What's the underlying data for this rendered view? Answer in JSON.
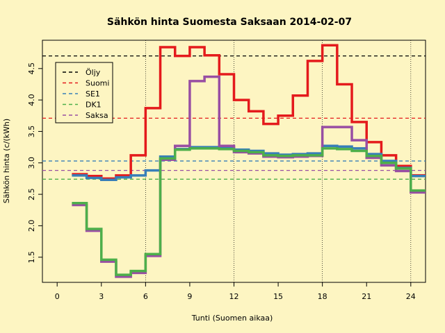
{
  "chart_data": {
    "type": "line",
    "title": "Sähkön hinta Suomesta Saksaan 2014-02-07",
    "xlabel": "Tunti (Suomen aikaa)",
    "ylabel": "Sähkön hinta (c/(kWh)",
    "xlim": [
      -1,
      25
    ],
    "ylim": [
      1.1,
      4.95
    ],
    "x_ticks": [
      0,
      3,
      6,
      9,
      12,
      15,
      18,
      21,
      24
    ],
    "y_ticks": [
      1.5,
      2.0,
      2.5,
      3.0,
      3.5,
      4.0,
      4.5
    ],
    "y_tick_labels": [
      "1.5",
      "2.0",
      "2.5",
      "3.0",
      "3.5",
      "4.0",
      "4.5"
    ],
    "vertical_gridlines": [
      6,
      12,
      18,
      24
    ],
    "legend_position": "top-left",
    "series": [
      {
        "name": "Suomi",
        "color": "#e41a1c",
        "values": [
          2.82,
          2.79,
          2.75,
          2.8,
          3.12,
          3.87,
          4.84,
          4.7,
          4.84,
          4.71,
          4.41,
          4.0,
          3.82,
          3.62,
          3.75,
          4.07,
          4.62,
          4.87,
          4.25,
          3.65,
          3.33,
          3.12,
          2.95,
          2.8
        ]
      },
      {
        "name": "SE1",
        "color": "#377eb8",
        "values": [
          2.8,
          2.76,
          2.73,
          2.77,
          2.8,
          2.88,
          3.1,
          3.22,
          3.25,
          3.25,
          3.24,
          3.21,
          3.19,
          3.15,
          3.13,
          3.14,
          3.15,
          3.27,
          3.26,
          3.23,
          3.14,
          3.03,
          2.92,
          2.79
        ]
      },
      {
        "name": "Saksa",
        "color": "#984ea3",
        "values": [
          2.33,
          1.92,
          1.43,
          1.19,
          1.25,
          1.52,
          3.05,
          3.27,
          4.3,
          4.37,
          3.27,
          3.17,
          3.15,
          3.1,
          3.09,
          3.1,
          3.11,
          3.57,
          3.57,
          3.36,
          3.08,
          2.96,
          2.87,
          2.53
        ]
      },
      {
        "name": "DK1",
        "color": "#4daf4a",
        "values": [
          2.36,
          1.95,
          1.46,
          1.22,
          1.28,
          1.55,
          3.07,
          3.21,
          3.23,
          3.23,
          3.22,
          3.19,
          3.17,
          3.12,
          3.11,
          3.12,
          3.12,
          3.23,
          3.22,
          3.19,
          3.11,
          3.0,
          2.91,
          2.56
        ]
      }
    ],
    "reference_lines": [
      {
        "name": "Öljy",
        "value": 4.7,
        "color": "#000000"
      },
      {
        "name": "Suomi",
        "value": 3.71,
        "color": "#e41a1c"
      },
      {
        "name": "SE1",
        "value": 3.03,
        "color": "#377eb8"
      },
      {
        "name": "DK1",
        "value": 2.74,
        "color": "#4daf4a"
      },
      {
        "name": "Saksa",
        "value": 2.88,
        "color": "#984ea3"
      }
    ],
    "legend": [
      {
        "label": "Öljy",
        "color": "#000000"
      },
      {
        "label": "Suomi",
        "color": "#e41a1c"
      },
      {
        "label": "SE1",
        "color": "#377eb8"
      },
      {
        "label": "DK1",
        "color": "#4daf4a"
      },
      {
        "label": "Saksa",
        "color": "#984ea3"
      }
    ]
  }
}
